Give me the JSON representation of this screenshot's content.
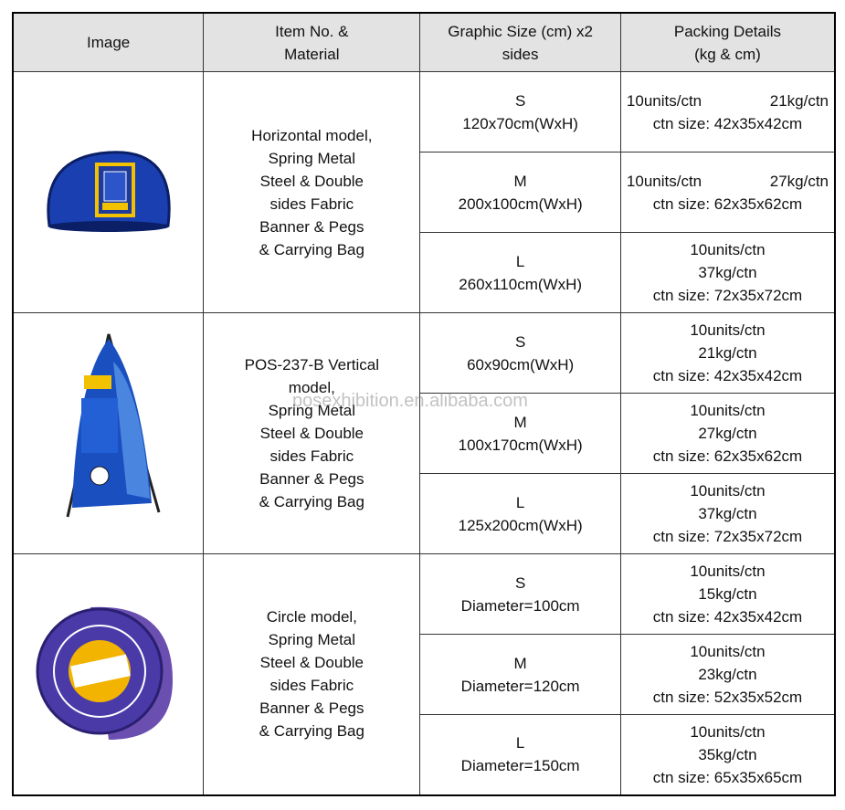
{
  "header": [
    [
      "Image"
    ],
    [
      "Item No. &",
      "Material"
    ],
    [
      "Graphic Size (cm) x2",
      "sides"
    ],
    [
      "Packing Details",
      "(kg & cm)"
    ]
  ],
  "groups": [
    {
      "item": [
        "Horizontal model,",
        "Spring Metal",
        "Steel & Double",
        "sides Fabric",
        "Banner & Pegs",
        "& Carrying Bag"
      ],
      "sizes": [
        {
          "size": "S",
          "dimension": "120x70cm(WxH)",
          "packing": [
            [
              "10units/ctn",
              "21kg/ctn"
            ],
            "ctn size: 42x35x42cm"
          ]
        },
        {
          "size": "M",
          "dimension": "200x100cm(WxH)",
          "packing": [
            [
              "10units/ctn",
              "27kg/ctn"
            ],
            "ctn size: 62x35x62cm"
          ]
        },
        {
          "size": "L",
          "dimension": "260x110cm(WxH)",
          "packing": [
            "10units/ctn",
            "37kg/ctn",
            "ctn size: 72x35x72cm"
          ]
        }
      ]
    },
    {
      "item": [
        "POS-237-B   Vertical",
        "model,",
        "Spring Metal",
        "Steel & Double",
        "sides Fabric",
        "Banner & Pegs",
        "& Carrying Bag"
      ],
      "sizes": [
        {
          "size": "S",
          "dimension": "60x90cm(WxH)",
          "packing": [
            "10units/ctn",
            "21kg/ctn",
            "ctn size: 42x35x42cm"
          ]
        },
        {
          "size": "M",
          "dimension": "100x170cm(WxH)",
          "packing": [
            "10units/ctn",
            "27kg/ctn",
            "ctn size: 62x35x62cm"
          ]
        },
        {
          "size": "L",
          "dimension": "125x200cm(WxH)",
          "packing": [
            "10units/ctn",
            "37kg/ctn",
            "ctn size: 72x35x72cm"
          ]
        }
      ]
    },
    {
      "item": [
        "Circle model,",
        "Spring Metal",
        "Steel & Double",
        "sides Fabric",
        "Banner & Pegs",
        "& Carrying Bag"
      ],
      "sizes": [
        {
          "size": "S",
          "dimension": "Diameter=100cm",
          "packing": [
            "10units/ctn",
            "15kg/ctn",
            "ctn size: 42x35x42cm"
          ]
        },
        {
          "size": "M",
          "dimension": "Diameter=120cm",
          "packing": [
            "10units/ctn",
            "23kg/ctn",
            "ctn size: 52x35x52cm"
          ]
        },
        {
          "size": "L",
          "dimension": "Diameter=150cm",
          "packing": [
            "10units/ctn",
            "35kg/ctn",
            "ctn size: 65x35x65cm"
          ]
        }
      ]
    }
  ],
  "watermark": "posexhibition.en.alibaba.com"
}
